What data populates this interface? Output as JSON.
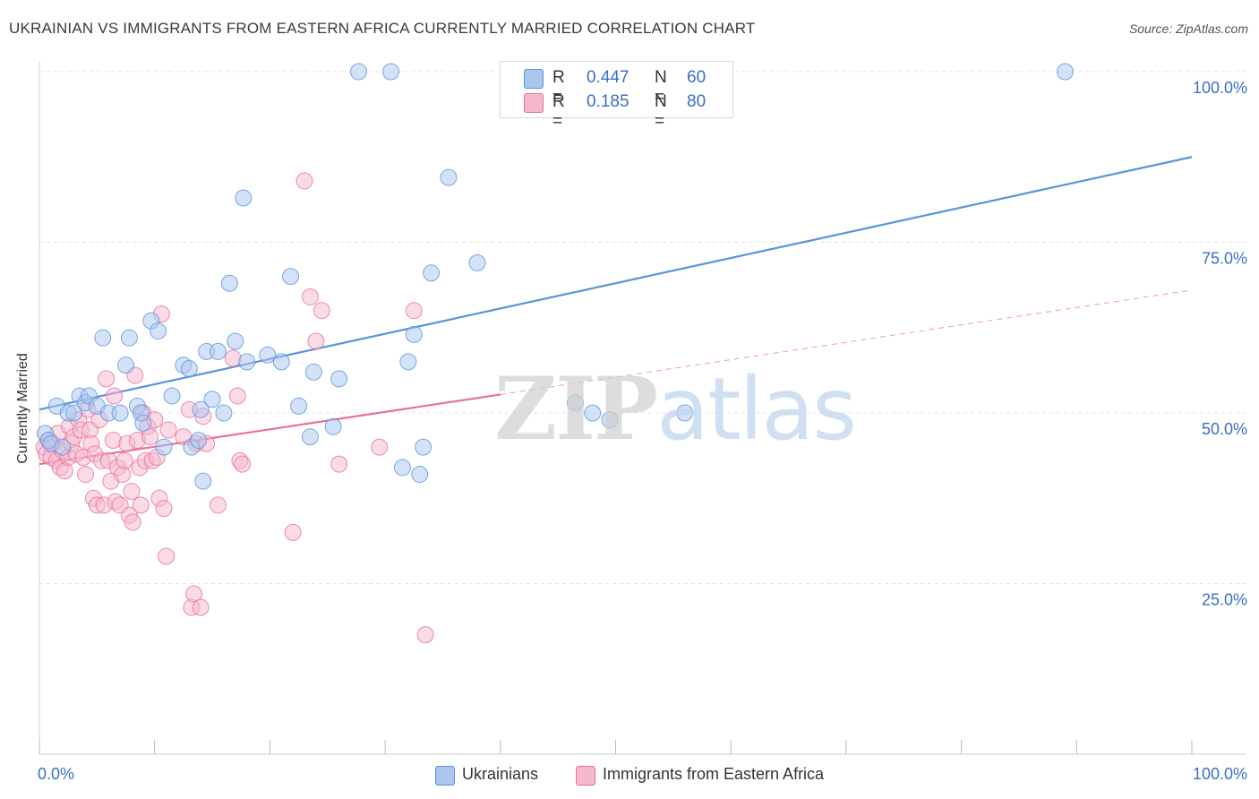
{
  "header": {
    "title": "UKRAINIAN VS IMMIGRANTS FROM EASTERN AFRICA CURRENTLY MARRIED CORRELATION CHART",
    "source": "Source: ZipAtlas.com"
  },
  "watermark": {
    "zip": "ZIP",
    "atlas": "atlas"
  },
  "legend_top": {
    "rows": [
      {
        "r_label": "R =",
        "r_value": "0.447",
        "n_label": "N =",
        "n_value": "60",
        "color": "#a9c6ef"
      },
      {
        "r_label": "R =",
        "r_value": "0.185",
        "n_label": "N =",
        "n_value": "80",
        "color": "#f6b8cb"
      }
    ]
  },
  "legend_bottom": {
    "items": [
      {
        "label": "Ukrainians",
        "color": "#a9c6ef"
      },
      {
        "label": "Immigrants from Eastern Africa",
        "color": "#f6b8cb"
      }
    ]
  },
  "chart_data": {
    "type": "scatter",
    "title": "UKRAINIAN VS IMMIGRANTS FROM EASTERN AFRICA CURRENTLY MARRIED CORRELATION CHART",
    "xlabel": "",
    "ylabel": "Currently Married",
    "xlim": [
      0,
      100
    ],
    "ylim": [
      0,
      100
    ],
    "x_tick_labels": [
      {
        "value": 0,
        "label": "0.0%"
      },
      {
        "value": 100,
        "label": "100.0%"
      }
    ],
    "y_tick_labels": [
      {
        "value": 25,
        "label": "25.0%"
      },
      {
        "value": 50,
        "label": "50.0%"
      },
      {
        "value": 75,
        "label": "75.0%"
      },
      {
        "value": 100,
        "label": "100.0%"
      }
    ],
    "grid": true,
    "series": [
      {
        "name": "Ukrainians",
        "color": "#5b93dc",
        "fill": "#a9c6ef",
        "r": 0.447,
        "n": 60,
        "trend": {
          "x": [
            0,
            100
          ],
          "y": [
            50.5,
            87.5
          ],
          "style": "solid"
        },
        "points": [
          [
            0.5,
            47
          ],
          [
            0.8,
            46
          ],
          [
            1,
            45.5
          ],
          [
            1.5,
            51
          ],
          [
            2,
            45
          ],
          [
            2.5,
            50
          ],
          [
            3,
            50
          ],
          [
            3.5,
            52.5
          ],
          [
            4,
            51.5
          ],
          [
            4.3,
            52.5
          ],
          [
            5,
            51
          ],
          [
            5.5,
            61
          ],
          [
            6,
            50
          ],
          [
            7,
            50
          ],
          [
            7.5,
            57
          ],
          [
            7.8,
            61
          ],
          [
            8.5,
            51
          ],
          [
            8.8,
            50
          ],
          [
            9,
            48.5
          ],
          [
            9.7,
            63.5
          ],
          [
            10.3,
            62
          ],
          [
            10.8,
            45
          ],
          [
            11.5,
            52.5
          ],
          [
            12.5,
            57
          ],
          [
            13,
            56.5
          ],
          [
            13.2,
            45
          ],
          [
            13.8,
            46
          ],
          [
            14,
            50.5
          ],
          [
            14.2,
            40
          ],
          [
            14.5,
            59
          ],
          [
            15,
            52
          ],
          [
            15.5,
            59
          ],
          [
            16,
            50
          ],
          [
            16.5,
            69
          ],
          [
            17,
            60.5
          ],
          [
            17.7,
            81.5
          ],
          [
            18,
            57.5
          ],
          [
            19.8,
            58.5
          ],
          [
            21,
            57.5
          ],
          [
            21.8,
            70
          ],
          [
            22.5,
            51
          ],
          [
            23.5,
            46.5
          ],
          [
            23.8,
            56
          ],
          [
            25.5,
            48
          ],
          [
            26,
            55
          ],
          [
            27.7,
            100
          ],
          [
            30.5,
            100
          ],
          [
            32,
            57.5
          ],
          [
            31.5,
            42
          ],
          [
            32.5,
            61.5
          ],
          [
            33,
            41
          ],
          [
            33.3,
            45
          ],
          [
            34,
            70.5
          ],
          [
            35.5,
            84.5
          ],
          [
            38,
            72
          ],
          [
            46.5,
            51.5
          ],
          [
            48,
            50
          ],
          [
            49.5,
            49
          ],
          [
            56,
            50
          ],
          [
            89,
            100
          ]
        ]
      },
      {
        "name": "Immigrants from Eastern Africa",
        "color": "#e8709a",
        "fill": "#f6b8cb",
        "r": 0.185,
        "n": 80,
        "trend": {
          "x": [
            0,
            40
          ],
          "y": [
            42.5,
            52.7
          ],
          "style": "solid",
          "extension": {
            "x": [
              40,
              100
            ],
            "y": [
              52.7,
              68
            ],
            "style": "dashed"
          }
        },
        "points": [
          [
            0.4,
            45
          ],
          [
            0.6,
            44
          ],
          [
            0.8,
            46
          ],
          [
            1,
            43.5
          ],
          [
            1.2,
            45.5
          ],
          [
            1.5,
            43
          ],
          [
            1.6,
            47
          ],
          [
            1.8,
            42
          ],
          [
            2,
            44.5
          ],
          [
            2.2,
            41.5
          ],
          [
            2.5,
            43.5
          ],
          [
            2.6,
            48
          ],
          [
            2.8,
            45.5
          ],
          [
            3,
            46.5
          ],
          [
            3.2,
            44
          ],
          [
            3.4,
            49
          ],
          [
            3.6,
            47.5
          ],
          [
            3.8,
            43.5
          ],
          [
            4,
            41
          ],
          [
            4.2,
            50.5
          ],
          [
            4.4,
            47.5
          ],
          [
            4.5,
            45.5
          ],
          [
            4.7,
            37.5
          ],
          [
            4.8,
            44
          ],
          [
            5,
            36.5
          ],
          [
            5.2,
            49
          ],
          [
            5.4,
            43
          ],
          [
            5.6,
            36.5
          ],
          [
            5.8,
            55
          ],
          [
            6,
            43
          ],
          [
            6.2,
            40
          ],
          [
            6.4,
            46
          ],
          [
            6.5,
            52.5
          ],
          [
            6.6,
            37
          ],
          [
            6.8,
            42
          ],
          [
            7,
            36.5
          ],
          [
            7.2,
            41
          ],
          [
            7.4,
            43
          ],
          [
            7.6,
            45.5
          ],
          [
            7.8,
            35
          ],
          [
            8,
            38.5
          ],
          [
            8.1,
            34
          ],
          [
            8.3,
            55.5
          ],
          [
            8.5,
            46
          ],
          [
            8.7,
            42
          ],
          [
            8.8,
            36.5
          ],
          [
            9,
            50
          ],
          [
            9.2,
            43
          ],
          [
            9.4,
            48
          ],
          [
            9.6,
            46.5
          ],
          [
            9.8,
            43
          ],
          [
            10,
            49
          ],
          [
            10.2,
            43.5
          ],
          [
            10.4,
            37.5
          ],
          [
            10.6,
            64.5
          ],
          [
            10.8,
            36
          ],
          [
            11,
            29
          ],
          [
            11.2,
            47.5
          ],
          [
            12.5,
            46.5
          ],
          [
            13,
            50.5
          ],
          [
            13.2,
            21.5
          ],
          [
            13.4,
            23.5
          ],
          [
            13.6,
            45.5
          ],
          [
            14,
            21.5
          ],
          [
            14.2,
            49.5
          ],
          [
            14.5,
            45.5
          ],
          [
            15.5,
            36.5
          ],
          [
            16.8,
            58
          ],
          [
            17.2,
            52.5
          ],
          [
            17.4,
            43
          ],
          [
            17.6,
            42.5
          ],
          [
            22,
            32.5
          ],
          [
            23,
            84
          ],
          [
            23.5,
            67
          ],
          [
            24,
            60.5
          ],
          [
            24.5,
            65
          ],
          [
            26,
            42.5
          ],
          [
            32.5,
            65
          ],
          [
            33.5,
            17.5
          ],
          [
            29.5,
            45
          ]
        ]
      }
    ]
  }
}
